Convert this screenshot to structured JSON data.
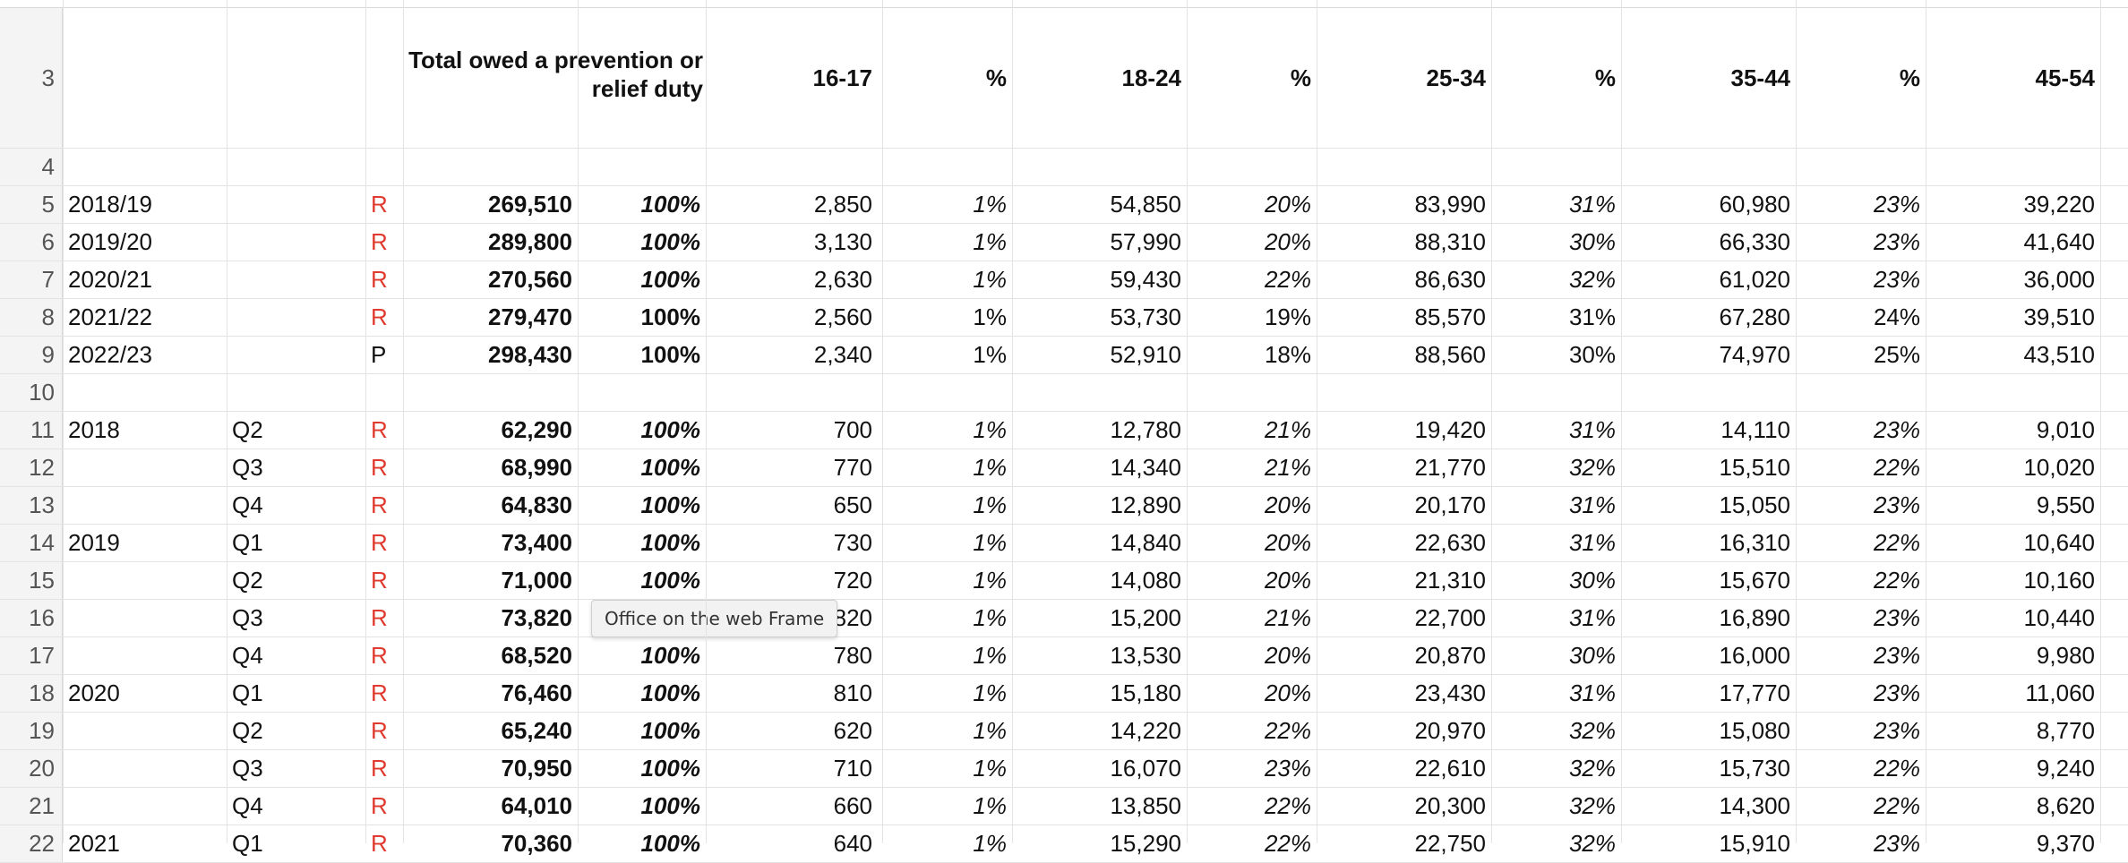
{
  "sheet": {
    "header": {
      "row_number": "3",
      "total_label": "Total owed a prevention or relief duty",
      "columns": [
        "16-17",
        "%",
        "18-24",
        "%",
        "25-34",
        "%",
        "35-44",
        "%",
        "45-54"
      ]
    },
    "rows": [
      {
        "n": "4",
        "year": "",
        "q": "",
        "flag": "",
        "total": "",
        "pct": "",
        "c": [
          "",
          "",
          "",
          "",
          "",
          "",
          "",
          "",
          ""
        ],
        "italic": false,
        "blank": true
      },
      {
        "n": "5",
        "year": "2018/19",
        "q": "",
        "flag": "R",
        "total": "269,510",
        "pct": "100%",
        "c": [
          "2,850",
          "1%",
          "54,850",
          "20%",
          "83,990",
          "31%",
          "60,980",
          "23%",
          "39,220"
        ],
        "italic": true
      },
      {
        "n": "6",
        "year": "2019/20",
        "q": "",
        "flag": "R",
        "total": "289,800",
        "pct": "100%",
        "c": [
          "3,130",
          "1%",
          "57,990",
          "20%",
          "88,310",
          "30%",
          "66,330",
          "23%",
          "41,640"
        ],
        "italic": true
      },
      {
        "n": "7",
        "year": "2020/21",
        "q": "",
        "flag": "R",
        "total": "270,560",
        "pct": "100%",
        "c": [
          "2,630",
          "1%",
          "59,430",
          "22%",
          "86,630",
          "32%",
          "61,020",
          "23%",
          "36,000"
        ],
        "italic": true
      },
      {
        "n": "8",
        "year": "2021/22",
        "q": "",
        "flag": "R",
        "total": "279,470",
        "pct": "100%",
        "c": [
          "2,560",
          "1%",
          "53,730",
          "19%",
          "85,570",
          "31%",
          "67,280",
          "24%",
          "39,510"
        ],
        "italic": false
      },
      {
        "n": "9",
        "year": "2022/23",
        "q": "",
        "flag": "P",
        "total": "298,430",
        "pct": "100%",
        "c": [
          "2,340",
          "1%",
          "52,910",
          "18%",
          "88,560",
          "30%",
          "74,970",
          "25%",
          "43,510"
        ],
        "italic": false
      },
      {
        "n": "10",
        "year": "",
        "q": "",
        "flag": "",
        "total": "",
        "pct": "",
        "c": [
          "",
          "",
          "",
          "",
          "",
          "",
          "",
          "",
          ""
        ],
        "italic": false,
        "blank": true
      },
      {
        "n": "11",
        "year": "2018",
        "q": "Q2",
        "flag": "R",
        "total": "62,290",
        "pct": "100%",
        "c": [
          "700",
          "1%",
          "12,780",
          "21%",
          "19,420",
          "31%",
          "14,110",
          "23%",
          "9,010"
        ],
        "italic": true
      },
      {
        "n": "12",
        "year": "",
        "q": "Q3",
        "flag": "R",
        "total": "68,990",
        "pct": "100%",
        "c": [
          "770",
          "1%",
          "14,340",
          "21%",
          "21,770",
          "32%",
          "15,510",
          "22%",
          "10,020"
        ],
        "italic": true
      },
      {
        "n": "13",
        "year": "",
        "q": "Q4",
        "flag": "R",
        "total": "64,830",
        "pct": "100%",
        "c": [
          "650",
          "1%",
          "12,890",
          "20%",
          "20,170",
          "31%",
          "15,050",
          "23%",
          "9,550"
        ],
        "italic": true
      },
      {
        "n": "14",
        "year": "2019",
        "q": "Q1",
        "flag": "R",
        "total": "73,400",
        "pct": "100%",
        "c": [
          "730",
          "1%",
          "14,840",
          "20%",
          "22,630",
          "31%",
          "16,310",
          "22%",
          "10,640"
        ],
        "italic": true
      },
      {
        "n": "15",
        "year": "",
        "q": "Q2",
        "flag": "R",
        "total": "71,000",
        "pct": "100%",
        "c": [
          "720",
          "1%",
          "14,080",
          "20%",
          "21,310",
          "30%",
          "15,670",
          "22%",
          "10,160"
        ],
        "italic": true
      },
      {
        "n": "16",
        "year": "",
        "q": "Q3",
        "flag": "R",
        "total": "73,820",
        "pct": "",
        "c": [
          "820",
          "1%",
          "15,200",
          "21%",
          "22,700",
          "31%",
          "16,890",
          "23%",
          "10,440"
        ],
        "italic": true
      },
      {
        "n": "17",
        "year": "",
        "q": "Q4",
        "flag": "R",
        "total": "68,520",
        "pct": "100%",
        "c": [
          "780",
          "1%",
          "13,530",
          "20%",
          "20,870",
          "30%",
          "16,000",
          "23%",
          "9,980"
        ],
        "italic": true
      },
      {
        "n": "18",
        "year": "2020",
        "q": "Q1",
        "flag": "R",
        "total": "76,460",
        "pct": "100%",
        "c": [
          "810",
          "1%",
          "15,180",
          "20%",
          "23,430",
          "31%",
          "17,770",
          "23%",
          "11,060"
        ],
        "italic": true
      },
      {
        "n": "19",
        "year": "",
        "q": "Q2",
        "flag": "R",
        "total": "65,240",
        "pct": "100%",
        "c": [
          "620",
          "1%",
          "14,220",
          "22%",
          "20,970",
          "32%",
          "15,080",
          "23%",
          "8,770"
        ],
        "italic": true
      },
      {
        "n": "20",
        "year": "",
        "q": "Q3",
        "flag": "R",
        "total": "70,950",
        "pct": "100%",
        "c": [
          "710",
          "1%",
          "16,070",
          "23%",
          "22,610",
          "32%",
          "15,730",
          "22%",
          "9,240"
        ],
        "italic": true
      },
      {
        "n": "21",
        "year": "",
        "q": "Q4",
        "flag": "R",
        "total": "64,010",
        "pct": "100%",
        "c": [
          "660",
          "1%",
          "13,850",
          "22%",
          "20,300",
          "32%",
          "14,300",
          "22%",
          "8,620"
        ],
        "italic": true
      },
      {
        "n": "22",
        "year": "2021",
        "q": "Q1",
        "flag": "R",
        "total": "70,360",
        "pct": "100%",
        "c": [
          "640",
          "1%",
          "15,290",
          "22%",
          "22,750",
          "32%",
          "15,910",
          "23%",
          "9,370"
        ],
        "italic": true
      }
    ]
  },
  "tooltip": {
    "text": "Office on the web Frame"
  },
  "colors": {
    "flag_red": "#e03a2f",
    "grid": "#e3e3e3",
    "row_header_bg": "#f4f4f4"
  }
}
